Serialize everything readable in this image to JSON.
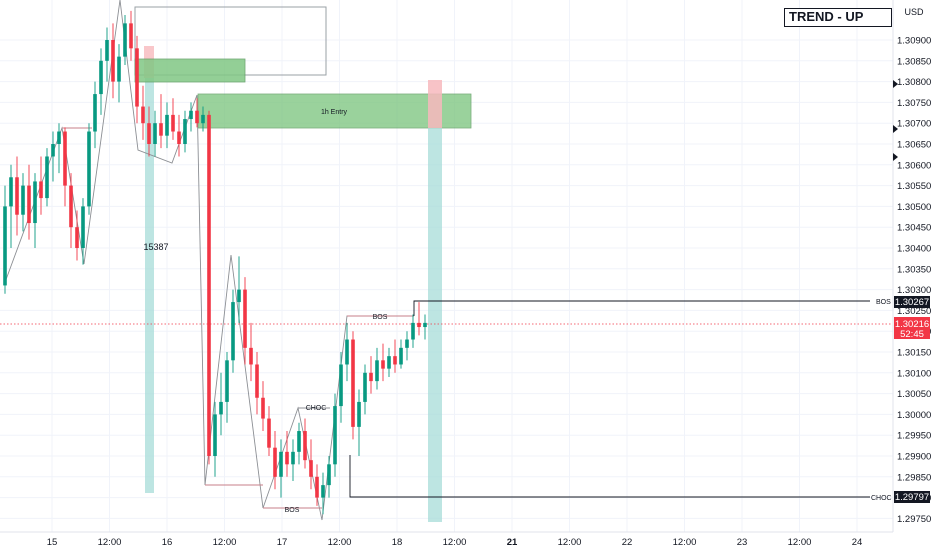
{
  "header": {
    "trend_label": "TREND - UP",
    "currency": "USD"
  },
  "colors": {
    "up": "#089981",
    "down": "#f23645",
    "zone_green": "#81c784",
    "zone_teal": "#a7dcd8",
    "zone_red": "#f7b9bd",
    "line": "#9aa0a6",
    "pivot": "#c77f88"
  },
  "chart_data": {
    "type": "candlestick",
    "title": "",
    "xlabel": "",
    "ylabel": "",
    "ylim": [
      1.2973,
      1.3095
    ],
    "x_ticks": [
      "15",
      "12:00",
      "16",
      "12:00",
      "17",
      "12:00",
      "18",
      "12:00",
      "21",
      "12:00",
      "22",
      "12:00",
      "23",
      "12:00",
      "24"
    ],
    "y_ticks": [
      "1.30900",
      "1.30850",
      "1.30800",
      "1.30750",
      "1.30700",
      "1.30650",
      "1.30600",
      "1.30550",
      "1.30500",
      "1.30450",
      "1.30400",
      "1.30350",
      "1.30300",
      "1.30250",
      "1.30200",
      "1.30150",
      "1.30100",
      "1.30050",
      "1.30000",
      "1.29950",
      "1.29900",
      "1.29850",
      "1.29800",
      "1.29750"
    ],
    "price_labels": [
      {
        "label": "BOS",
        "value": "1.30267",
        "price": 1.30267
      },
      {
        "label": "",
        "value": "1.30216",
        "time": "52:45",
        "price": 1.30216
      },
      {
        "label": "CHOC",
        "value": "1.29797",
        "price": 1.29797
      }
    ],
    "annotations": [
      "1h Entry",
      "15387",
      "BOS",
      "CHOC",
      "BOS"
    ],
    "candles": [
      {
        "o": 1.3031,
        "h": 1.3055,
        "l": 1.3029,
        "c": 1.305
      },
      {
        "o": 1.305,
        "h": 1.306,
        "l": 1.304,
        "c": 1.3057
      },
      {
        "o": 1.3057,
        "h": 1.3062,
        "l": 1.3043,
        "c": 1.3048
      },
      {
        "o": 1.3048,
        "h": 1.3058,
        "l": 1.3044,
        "c": 1.3055
      },
      {
        "o": 1.3055,
        "h": 1.306,
        "l": 1.3042,
        "c": 1.3046
      },
      {
        "o": 1.3046,
        "h": 1.3058,
        "l": 1.304,
        "c": 1.3056
      },
      {
        "o": 1.3056,
        "h": 1.3062,
        "l": 1.3048,
        "c": 1.3052
      },
      {
        "o": 1.3052,
        "h": 1.3064,
        "l": 1.305,
        "c": 1.3062
      },
      {
        "o": 1.3062,
        "h": 1.3068,
        "l": 1.3056,
        "c": 1.3065
      },
      {
        "o": 1.3065,
        "h": 1.307,
        "l": 1.3058,
        "c": 1.3068
      },
      {
        "o": 1.3068,
        "h": 1.3069,
        "l": 1.305,
        "c": 1.3055
      },
      {
        "o": 1.3055,
        "h": 1.3058,
        "l": 1.304,
        "c": 1.3045
      },
      {
        "o": 1.3045,
        "h": 1.3049,
        "l": 1.3037,
        "c": 1.304
      },
      {
        "o": 1.304,
        "h": 1.3052,
        "l": 1.3036,
        "c": 1.305
      },
      {
        "o": 1.305,
        "h": 1.307,
        "l": 1.3048,
        "c": 1.3068
      },
      {
        "o": 1.3068,
        "h": 1.308,
        "l": 1.3064,
        "c": 1.3077
      },
      {
        "o": 1.3077,
        "h": 1.3088,
        "l": 1.3072,
        "c": 1.3085
      },
      {
        "o": 1.3085,
        "h": 1.3093,
        "l": 1.308,
        "c": 1.309
      },
      {
        "o": 1.309,
        "h": 1.3094,
        "l": 1.3076,
        "c": 1.308
      },
      {
        "o": 1.308,
        "h": 1.3089,
        "l": 1.3075,
        "c": 1.3086
      },
      {
        "o": 1.3086,
        "h": 1.3096,
        "l": 1.3084,
        "c": 1.3094
      },
      {
        "o": 1.3094,
        "h": 1.3097,
        "l": 1.3085,
        "c": 1.3088
      },
      {
        "o": 1.3088,
        "h": 1.3091,
        "l": 1.307,
        "c": 1.3074
      },
      {
        "o": 1.3074,
        "h": 1.3079,
        "l": 1.3066,
        "c": 1.307
      },
      {
        "o": 1.307,
        "h": 1.3074,
        "l": 1.3062,
        "c": 1.3065
      },
      {
        "o": 1.3065,
        "h": 1.3073,
        "l": 1.3062,
        "c": 1.307
      },
      {
        "o": 1.307,
        "h": 1.3077,
        "l": 1.3064,
        "c": 1.3067
      },
      {
        "o": 1.3067,
        "h": 1.3075,
        "l": 1.3064,
        "c": 1.3072
      },
      {
        "o": 1.3072,
        "h": 1.3076,
        "l": 1.3066,
        "c": 1.3068
      },
      {
        "o": 1.3068,
        "h": 1.3072,
        "l": 1.3062,
        "c": 1.3065
      },
      {
        "o": 1.3065,
        "h": 1.3073,
        "l": 1.3063,
        "c": 1.3071
      },
      {
        "o": 1.3071,
        "h": 1.3075,
        "l": 1.3068,
        "c": 1.3073
      },
      {
        "o": 1.3073,
        "h": 1.3076,
        "l": 1.3069,
        "c": 1.307
      },
      {
        "o": 1.307,
        "h": 1.3074,
        "l": 1.3068,
        "c": 1.3072
      },
      {
        "o": 1.3072,
        "h": 1.3073,
        "l": 1.2988,
        "c": 1.299
      },
      {
        "o": 1.299,
        "h": 1.3003,
        "l": 1.2985,
        "c": 1.3
      },
      {
        "o": 1.3,
        "h": 1.301,
        "l": 1.2995,
        "c": 1.3003
      },
      {
        "o": 1.3003,
        "h": 1.3015,
        "l": 1.2998,
        "c": 1.3013
      },
      {
        "o": 1.3013,
        "h": 1.303,
        "l": 1.301,
        "c": 1.3027
      },
      {
        "o": 1.3027,
        "h": 1.3038,
        "l": 1.3022,
        "c": 1.303
      },
      {
        "o": 1.303,
        "h": 1.3033,
        "l": 1.3012,
        "c": 1.3016
      },
      {
        "o": 1.3016,
        "h": 1.3022,
        "l": 1.3008,
        "c": 1.3012
      },
      {
        "o": 1.3012,
        "h": 1.3015,
        "l": 1.3,
        "c": 1.3004
      },
      {
        "o": 1.3004,
        "h": 1.3008,
        "l": 1.2996,
        "c": 1.2999
      },
      {
        "o": 1.2999,
        "h": 1.3002,
        "l": 1.299,
        "c": 1.2992
      },
      {
        "o": 1.2992,
        "h": 1.2996,
        "l": 1.2982,
        "c": 1.2985
      },
      {
        "o": 1.2985,
        "h": 1.2994,
        "l": 1.298,
        "c": 1.2991
      },
      {
        "o": 1.2991,
        "h": 1.2996,
        "l": 1.2985,
        "c": 1.2988
      },
      {
        "o": 1.2988,
        "h": 1.2994,
        "l": 1.2984,
        "c": 1.2991
      },
      {
        "o": 1.2991,
        "h": 1.2998,
        "l": 1.2988,
        "c": 1.2996
      },
      {
        "o": 1.2996,
        "h": 1.2999,
        "l": 1.2987,
        "c": 1.2989
      },
      {
        "o": 1.2989,
        "h": 1.2994,
        "l": 1.2982,
        "c": 1.2985
      },
      {
        "o": 1.2985,
        "h": 1.2988,
        "l": 1.2978,
        "c": 1.298
      },
      {
        "o": 1.298,
        "h": 1.2986,
        "l": 1.2976,
        "c": 1.2983
      },
      {
        "o": 1.2983,
        "h": 1.299,
        "l": 1.298,
        "c": 1.2988
      },
      {
        "o": 1.2988,
        "h": 1.3005,
        "l": 1.2985,
        "c": 1.3002
      },
      {
        "o": 1.3002,
        "h": 1.3015,
        "l": 1.2998,
        "c": 1.3012
      },
      {
        "o": 1.3012,
        "h": 1.3022,
        "l": 1.3008,
        "c": 1.3018
      },
      {
        "o": 1.3018,
        "h": 1.302,
        "l": 1.2994,
        "c": 1.2997
      },
      {
        "o": 1.2997,
        "h": 1.3006,
        "l": 1.299,
        "c": 1.3003
      },
      {
        "o": 1.3003,
        "h": 1.3012,
        "l": 1.3,
        "c": 1.301
      },
      {
        "o": 1.301,
        "h": 1.3014,
        "l": 1.3005,
        "c": 1.3008
      },
      {
        "o": 1.3008,
        "h": 1.3016,
        "l": 1.3006,
        "c": 1.3013
      },
      {
        "o": 1.3013,
        "h": 1.3017,
        "l": 1.3008,
        "c": 1.3011
      },
      {
        "o": 1.3011,
        "h": 1.3016,
        "l": 1.3009,
        "c": 1.3014
      },
      {
        "o": 1.3014,
        "h": 1.3018,
        "l": 1.301,
        "c": 1.3012
      },
      {
        "o": 1.3012,
        "h": 1.3018,
        "l": 1.3011,
        "c": 1.3016
      },
      {
        "o": 1.3016,
        "h": 1.302,
        "l": 1.3013,
        "c": 1.3018
      },
      {
        "o": 1.3018,
        "h": 1.3024,
        "l": 1.3016,
        "c": 1.3022
      },
      {
        "o": 1.3022,
        "h": 1.3027,
        "l": 1.3019,
        "c": 1.3021
      },
      {
        "o": 1.3021,
        "h": 1.3024,
        "l": 1.3018,
        "c": 1.3022
      }
    ]
  }
}
